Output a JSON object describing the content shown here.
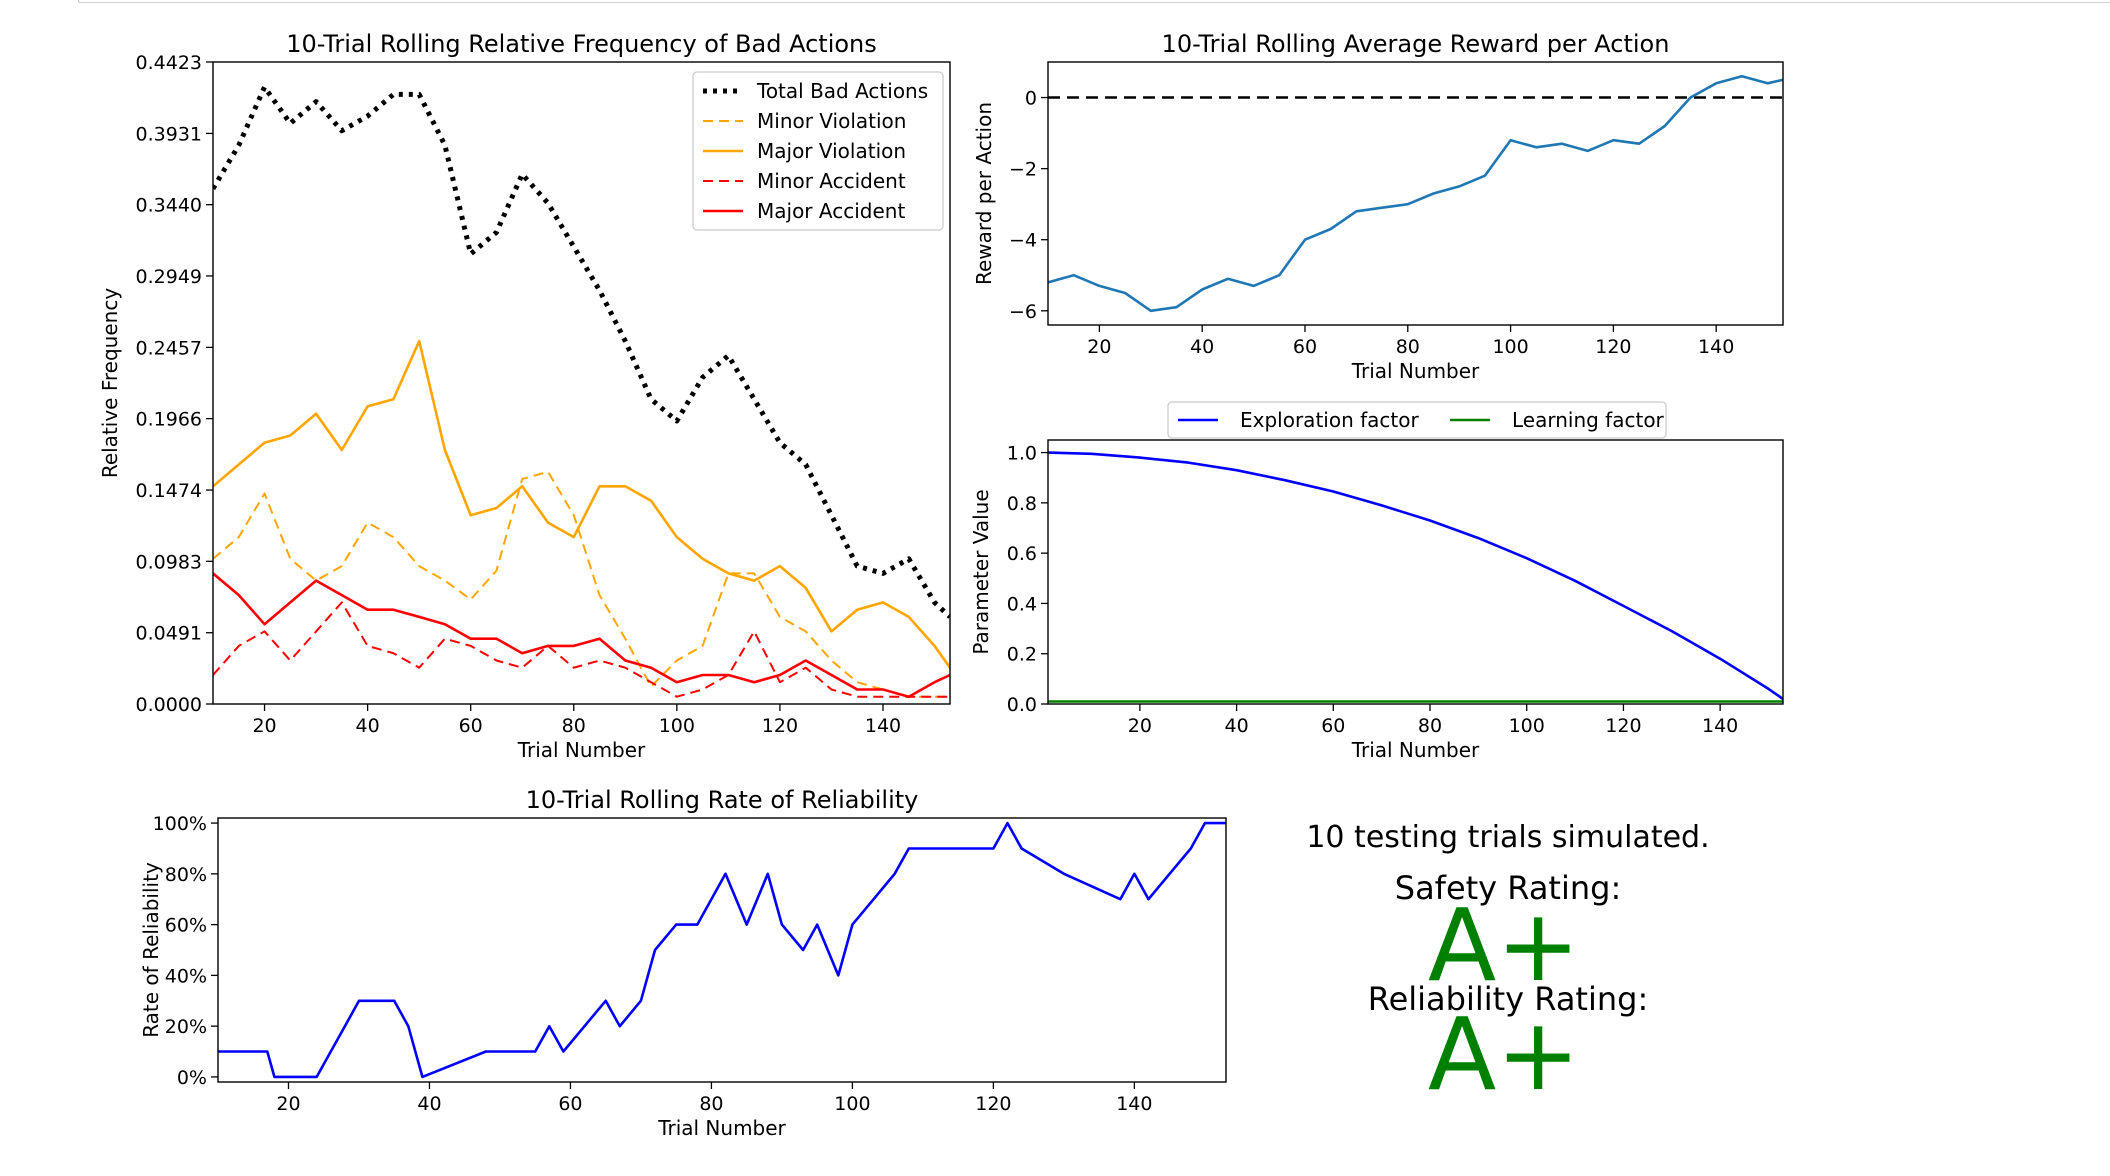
{
  "chart_data": [
    {
      "type": "line",
      "title": "10-Trial Rolling Relative Frequency of Bad Actions",
      "xlabel": "Trial Number",
      "ylabel": "Relative Frequency",
      "xlim": [
        10,
        153
      ],
      "ylim": [
        0,
        0.4423
      ],
      "xticks": [
        "20",
        "40",
        "60",
        "80",
        "100",
        "120",
        "140"
      ],
      "yticks": [
        "0.0000",
        "0.0491",
        "0.0983",
        "0.1474",
        "0.1966",
        "0.2457",
        "0.2949",
        "0.3440",
        "0.3931",
        "0.4423"
      ],
      "legend_position": "top-right",
      "grid": false,
      "x": [
        10,
        15,
        20,
        25,
        30,
        35,
        40,
        45,
        50,
        55,
        60,
        65,
        70,
        75,
        80,
        85,
        90,
        95,
        100,
        105,
        110,
        115,
        120,
        125,
        130,
        135,
        140,
        145,
        150,
        153
      ],
      "series": [
        {
          "name": "Total Bad Actions",
          "color": "#000000",
          "style": "dotted",
          "values": [
            0.355,
            0.385,
            0.425,
            0.4,
            0.415,
            0.395,
            0.405,
            0.42,
            0.42,
            0.385,
            0.31,
            0.325,
            0.365,
            0.345,
            0.315,
            0.285,
            0.25,
            0.21,
            0.195,
            0.225,
            0.24,
            0.21,
            0.18,
            0.165,
            0.13,
            0.095,
            0.09,
            0.1,
            0.07,
            0.06
          ]
        },
        {
          "name": "Minor Violation",
          "color": "#ffa500",
          "style": "dashed",
          "values": [
            0.1,
            0.115,
            0.145,
            0.1,
            0.085,
            0.095,
            0.125,
            0.115,
            0.095,
            0.085,
            0.072,
            0.092,
            0.155,
            0.16,
            0.13,
            0.075,
            0.045,
            0.012,
            0.03,
            0.04,
            0.09,
            0.09,
            0.06,
            0.05,
            0.03,
            0.015,
            0.01,
            0.005,
            0.005,
            0.005
          ]
        },
        {
          "name": "Major Violation",
          "color": "#ffa500",
          "style": "solid",
          "values": [
            0.15,
            0.165,
            0.18,
            0.185,
            0.2,
            0.175,
            0.205,
            0.21,
            0.25,
            0.175,
            0.13,
            0.135,
            0.15,
            0.125,
            0.115,
            0.15,
            0.15,
            0.14,
            0.115,
            0.1,
            0.09,
            0.085,
            0.095,
            0.08,
            0.05,
            0.065,
            0.07,
            0.06,
            0.04,
            0.025
          ]
        },
        {
          "name": "Minor Accident",
          "color": "#ff0000",
          "style": "dashed",
          "values": [
            0.02,
            0.04,
            0.05,
            0.03,
            0.05,
            0.07,
            0.04,
            0.035,
            0.025,
            0.045,
            0.04,
            0.03,
            0.025,
            0.04,
            0.025,
            0.03,
            0.025,
            0.015,
            0.005,
            0.01,
            0.02,
            0.05,
            0.015,
            0.025,
            0.01,
            0.005,
            0.005,
            0.005,
            0.005,
            0.005
          ]
        },
        {
          "name": "Major Accident",
          "color": "#ff0000",
          "style": "solid",
          "values": [
            0.09,
            0.075,
            0.055,
            0.07,
            0.085,
            0.075,
            0.065,
            0.065,
            0.06,
            0.055,
            0.045,
            0.045,
            0.035,
            0.04,
            0.04,
            0.045,
            0.03,
            0.025,
            0.015,
            0.02,
            0.02,
            0.015,
            0.02,
            0.03,
            0.02,
            0.01,
            0.01,
            0.005,
            0.015,
            0.02
          ]
        }
      ]
    },
    {
      "type": "line",
      "title": "10-Trial Rolling Average Reward per Action",
      "xlabel": "Trial Number",
      "ylabel": "Reward per Action",
      "xlim": [
        10,
        153
      ],
      "ylim": [
        -6.4,
        1.0
      ],
      "xticks": [
        "20",
        "40",
        "60",
        "80",
        "100",
        "120",
        "140"
      ],
      "yticks": [
        "0",
        "−2",
        "−4",
        "−6"
      ],
      "grid": false,
      "reference_line": {
        "y": 0,
        "color": "#000000",
        "style": "dashed"
      },
      "x": [
        10,
        15,
        20,
        25,
        30,
        35,
        40,
        45,
        50,
        55,
        60,
        65,
        70,
        75,
        80,
        85,
        90,
        95,
        100,
        105,
        110,
        115,
        120,
        125,
        130,
        135,
        140,
        145,
        150,
        153
      ],
      "series": [
        {
          "name": "",
          "color": "#1f77b4",
          "values": [
            -5.2,
            -5.0,
            -5.3,
            -5.5,
            -6.0,
            -5.9,
            -5.4,
            -5.1,
            -5.3,
            -5.0,
            -4.0,
            -3.7,
            -3.2,
            -3.1,
            -3.0,
            -2.7,
            -2.5,
            -2.2,
            -1.2,
            -1.4,
            -1.3,
            -1.5,
            -1.2,
            -1.3,
            -0.8,
            0.0,
            0.4,
            0.6,
            0.4,
            0.5
          ]
        }
      ]
    },
    {
      "type": "line",
      "title": "",
      "xlabel": "Trial Number",
      "ylabel": "Parameter Value",
      "xlim": [
        1,
        153
      ],
      "ylim": [
        0,
        1.05
      ],
      "xticks": [
        "20",
        "40",
        "60",
        "80",
        "100",
        "120",
        "140"
      ],
      "yticks": [
        "0.0",
        "0.2",
        "0.4",
        "0.6",
        "0.8",
        "1.0"
      ],
      "legend_position": "top-center, outside",
      "grid": false,
      "x": [
        1,
        10,
        20,
        30,
        40,
        50,
        60,
        70,
        80,
        90,
        100,
        110,
        120,
        130,
        140,
        150,
        153
      ],
      "series": [
        {
          "name": "Exploration factor",
          "color": "#0000ff",
          "values": [
            1.0,
            0.995,
            0.98,
            0.96,
            0.93,
            0.89,
            0.845,
            0.79,
            0.73,
            0.66,
            0.58,
            0.49,
            0.39,
            0.29,
            0.18,
            0.06,
            0.02
          ]
        },
        {
          "name": "Learning factor",
          "color": "#008000",
          "values": [
            0.01,
            0.01,
            0.01,
            0.01,
            0.01,
            0.01,
            0.01,
            0.01,
            0.01,
            0.01,
            0.01,
            0.01,
            0.01,
            0.01,
            0.01,
            0.01,
            0.01
          ]
        }
      ]
    },
    {
      "type": "line",
      "title": "10-Trial Rolling Rate of Reliability",
      "xlabel": "Trial Number",
      "ylabel": "Rate of Reliability",
      "xlim": [
        10,
        153
      ],
      "ylim": [
        -2,
        102
      ],
      "xticks": [
        "20",
        "40",
        "60",
        "80",
        "100",
        "120",
        "140"
      ],
      "yticks": [
        "0%",
        "20%",
        "40%",
        "60%",
        "80%",
        "100%"
      ],
      "grid": false,
      "x": [
        10,
        17,
        18,
        24,
        26,
        28,
        30,
        35,
        37,
        39,
        48,
        55,
        57,
        59,
        62,
        65,
        67,
        70,
        72,
        75,
        78,
        82,
        85,
        88,
        90,
        93,
        95,
        98,
        100,
        103,
        106,
        108,
        112,
        120,
        122,
        124,
        130,
        138,
        140,
        142,
        145,
        148,
        150,
        153
      ],
      "series": [
        {
          "name": "",
          "color": "#0000ff",
          "values": [
            10,
            10,
            0,
            0,
            10,
            20,
            30,
            30,
            20,
            0,
            10,
            10,
            20,
            10,
            20,
            30,
            20,
            30,
            50,
            60,
            60,
            80,
            60,
            80,
            60,
            50,
            60,
            40,
            60,
            70,
            80,
            90,
            90,
            90,
            100,
            90,
            80,
            70,
            80,
            70,
            80,
            90,
            100,
            100
          ]
        }
      ]
    }
  ],
  "summary": {
    "trials_text": "10 testing trials simulated.",
    "safety_label": "Safety Rating:",
    "safety_grade": "A+",
    "reliability_label": "Reliability Rating:",
    "reliability_grade": "A+",
    "grade_color": "#008000"
  }
}
